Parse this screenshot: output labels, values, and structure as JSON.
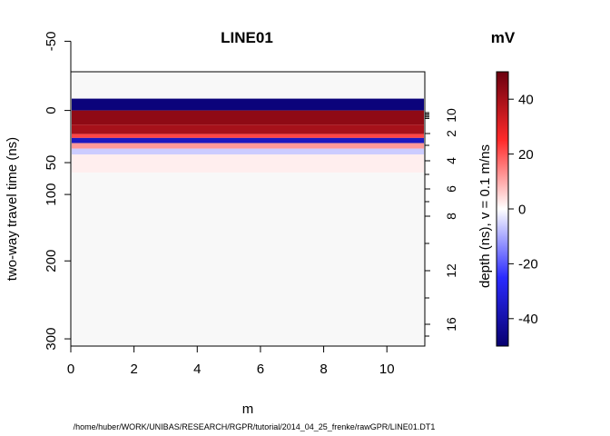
{
  "chart_data": {
    "type": "heatmap",
    "title": "LINE01",
    "xlabel": "m",
    "ylabel": "two-way travel time (ns)",
    "y2label": "depth (ns),   v = 0.1 m/ns",
    "colorbar_title": "mV",
    "source_file": "/home/huber/WORK/UNIBAS/RESEARCH/RGPR/tutorial/2014_04_25_frenke/rawGPR/LINE01.DT1",
    "xlim": [
      0,
      11.2
    ],
    "ylim": [
      -60,
      355
    ],
    "y_scale": "square-root (time-to-depth)",
    "x_ticks": [
      0,
      2,
      4,
      6,
      8,
      10
    ],
    "y_ticks": [
      -50,
      0,
      50,
      100,
      200,
      300
    ],
    "y2_ticks": [
      2,
      4,
      6,
      8,
      12,
      16
    ],
    "y2_extra_label": "10",
    "colorbar_range": [
      -50,
      50
    ],
    "colorbar_ticks": [
      40,
      20,
      0,
      -20,
      -40
    ],
    "colormap": {
      "low": "#08006f",
      "mid": "#ffffff",
      "high": "#6b000f"
    },
    "bands": [
      {
        "t_top": -3,
        "t_bottom": 0,
        "value": -48
      },
      {
        "t_top": 0,
        "t_bottom": 5,
        "value": 44
      },
      {
        "t_top": 5,
        "t_bottom": 13,
        "value": 40
      },
      {
        "t_top": 13,
        "t_bottom": 17,
        "value": 22
      },
      {
        "t_top": 17,
        "t_bottom": 23,
        "value": -36
      },
      {
        "t_top": 23,
        "t_bottom": 30,
        "value": 12
      },
      {
        "t_top": 30,
        "t_bottom": 38,
        "value": -6
      },
      {
        "t_top": 38,
        "t_bottom": 65,
        "value": 2
      }
    ]
  }
}
